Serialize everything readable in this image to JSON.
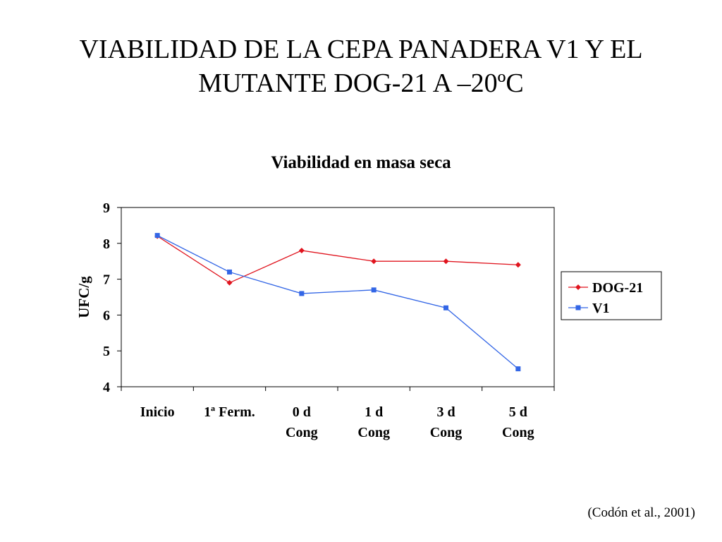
{
  "slide": {
    "title_lines": [
      "VIABILIDAD DE LA CEPA PANADERA V1 Y EL",
      "MUTANTE DOG-21 A –20ºC"
    ],
    "citation": "(Codón et al., 2001)"
  },
  "chart_data": {
    "type": "line",
    "title": "Viabilidad en masa seca",
    "ylabel": "UFC/g",
    "xlabel": "",
    "categories": [
      [
        "Inicio"
      ],
      [
        "1ª Ferm."
      ],
      [
        "0 d",
        "Cong"
      ],
      [
        "1 d",
        "Cong"
      ],
      [
        "3 d",
        "Cong"
      ],
      [
        "5 d",
        "Cong"
      ]
    ],
    "ylim": [
      4,
      9
    ],
    "yticks": [
      4,
      5,
      6,
      7,
      8,
      9
    ],
    "grid": false,
    "legend_position": "right",
    "series": [
      {
        "name": "DOG-21",
        "color": "#e0141e",
        "marker": "diamond",
        "values": [
          8.2,
          6.9,
          7.8,
          7.5,
          7.5,
          7.4
        ]
      },
      {
        "name": "V1",
        "color": "#3366e6",
        "marker": "square",
        "values": [
          8.22,
          7.2,
          6.6,
          6.7,
          6.2,
          4.5
        ]
      }
    ]
  }
}
